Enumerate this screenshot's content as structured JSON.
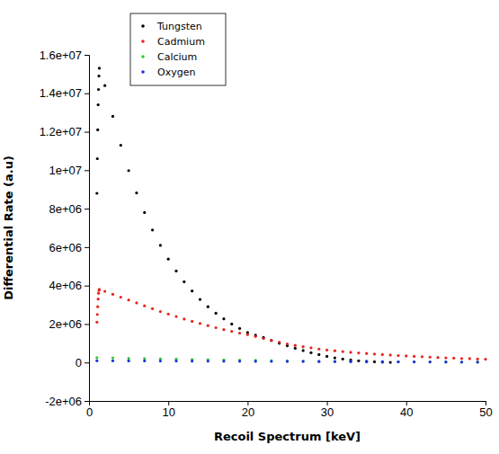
{
  "chart_data": {
    "type": "scatter",
    "x_label": "Recoil Spectrum [keV]",
    "y_label": "Differential Rate (a.u)",
    "xlim": [
      0,
      50
    ],
    "ylim": [
      -2000000,
      16000000
    ],
    "xticks": [
      0,
      10,
      20,
      30,
      40,
      50
    ],
    "yticks": [
      {
        "value": -2000000,
        "label": "-2e+06"
      },
      0,
      {
        "value": 2000000,
        "label": "2e+06"
      },
      {
        "value": 4000000,
        "label": "4e+06"
      },
      {
        "value": 6000000,
        "label": "6e+06"
      },
      {
        "value": 8000000,
        "label": "8e+06"
      },
      {
        "value": 10000000,
        "label": "1e+07"
      },
      {
        "value": 12000000,
        "label": "1.2e+07"
      },
      {
        "value": 14000000,
        "label": "1.4e+07"
      },
      {
        "value": 16000000,
        "label": "1.6e+07"
      }
    ],
    "legend": "top-left",
    "marker": "dot",
    "series": [
      {
        "name": "Tungsten",
        "color": "#000000",
        "x": [
          1.0,
          1.05,
          1.1,
          1.15,
          1.2,
          1.25,
          1.3,
          2,
          3,
          4,
          5,
          6,
          7,
          8,
          9,
          10,
          11,
          12,
          13,
          14,
          15,
          16,
          17,
          18,
          19,
          20,
          21,
          22,
          23,
          24,
          25,
          26,
          27,
          28,
          29,
          30,
          31,
          32,
          33,
          34,
          35,
          36,
          37,
          38
        ],
        "values": [
          8800000,
          10600000,
          12100000,
          13400000,
          14200000,
          14900000,
          15300000,
          14400000,
          12800000,
          11300000,
          9980000,
          8820000,
          7800000,
          6890000,
          6090000,
          5380000,
          4760000,
          4200000,
          3720000,
          3280000,
          2900000,
          2560000,
          2270000,
          2000000,
          1770000,
          1560000,
          1420000,
          1300000,
          1150000,
          1000000,
          870000,
          740000,
          620000,
          510000,
          410000,
          320000,
          240000,
          180000,
          130000,
          90000,
          60000,
          35000,
          18000,
          6000
        ]
      },
      {
        "name": "Cadmium",
        "color": "#e8231b",
        "x": [
          1.0,
          1.05,
          1.1,
          1.15,
          1.2,
          1.25,
          1.3,
          2,
          3,
          4,
          5,
          6,
          7,
          8,
          9,
          10,
          11,
          12,
          13,
          14,
          15,
          16,
          17,
          18,
          19,
          20,
          21,
          22,
          23,
          24,
          25,
          26,
          27,
          28,
          29,
          30,
          31,
          32,
          33,
          34,
          35,
          36,
          37,
          38,
          39,
          40,
          41,
          42,
          43,
          44,
          45,
          46,
          47,
          48,
          49,
          50
        ],
        "values": [
          2100000,
          2500000,
          2900000,
          3300000,
          3600000,
          3750000,
          3800000,
          3700000,
          3550000,
          3400000,
          3250000,
          3100000,
          2950000,
          2800000,
          2650000,
          2520000,
          2390000,
          2260000,
          2140000,
          2030000,
          1920000,
          1810000,
          1710000,
          1620000,
          1530000,
          1450000,
          1350000,
          1250000,
          1150000,
          1060000,
          970000,
          890000,
          820000,
          760000,
          700000,
          650000,
          610000,
          570000,
          530000,
          500000,
          470000,
          440000,
          410000,
          390000,
          360000,
          340000,
          320000,
          300000,
          280000,
          260000,
          240000,
          230000,
          210000,
          200000,
          180000,
          170000
        ]
      },
      {
        "name": "Calcium",
        "color": "#2ecc2e",
        "x": [
          1,
          3,
          5,
          7,
          9,
          11,
          13,
          15,
          17,
          19,
          21,
          23,
          25,
          27,
          29,
          31,
          33,
          35,
          37,
          39,
          41,
          43,
          45,
          47,
          49
        ],
        "values": [
          250000,
          240000,
          220000,
          210000,
          190000,
          180000,
          160000,
          150000,
          130000,
          120000,
          110000,
          100000,
          90000,
          80000,
          70000,
          60000,
          55000,
          50000,
          45000,
          40000,
          35000,
          30000,
          25000,
          20000,
          20000
        ]
      },
      {
        "name": "Oxygen",
        "color": "#1f2ee0",
        "x": [
          1,
          3,
          5,
          7,
          9,
          11,
          13,
          15,
          17,
          19,
          21,
          23,
          25,
          27,
          29,
          31,
          33,
          35,
          37,
          39,
          41,
          43,
          45,
          47,
          49
        ],
        "values": [
          90000,
          88000,
          85000,
          82000,
          79000,
          76000,
          73000,
          70000,
          67000,
          64000,
          61000,
          58000,
          55000,
          52000,
          49000,
          46000,
          43000,
          40000,
          37000,
          34000,
          31000,
          28000,
          25000,
          22000,
          20000
        ]
      }
    ]
  }
}
